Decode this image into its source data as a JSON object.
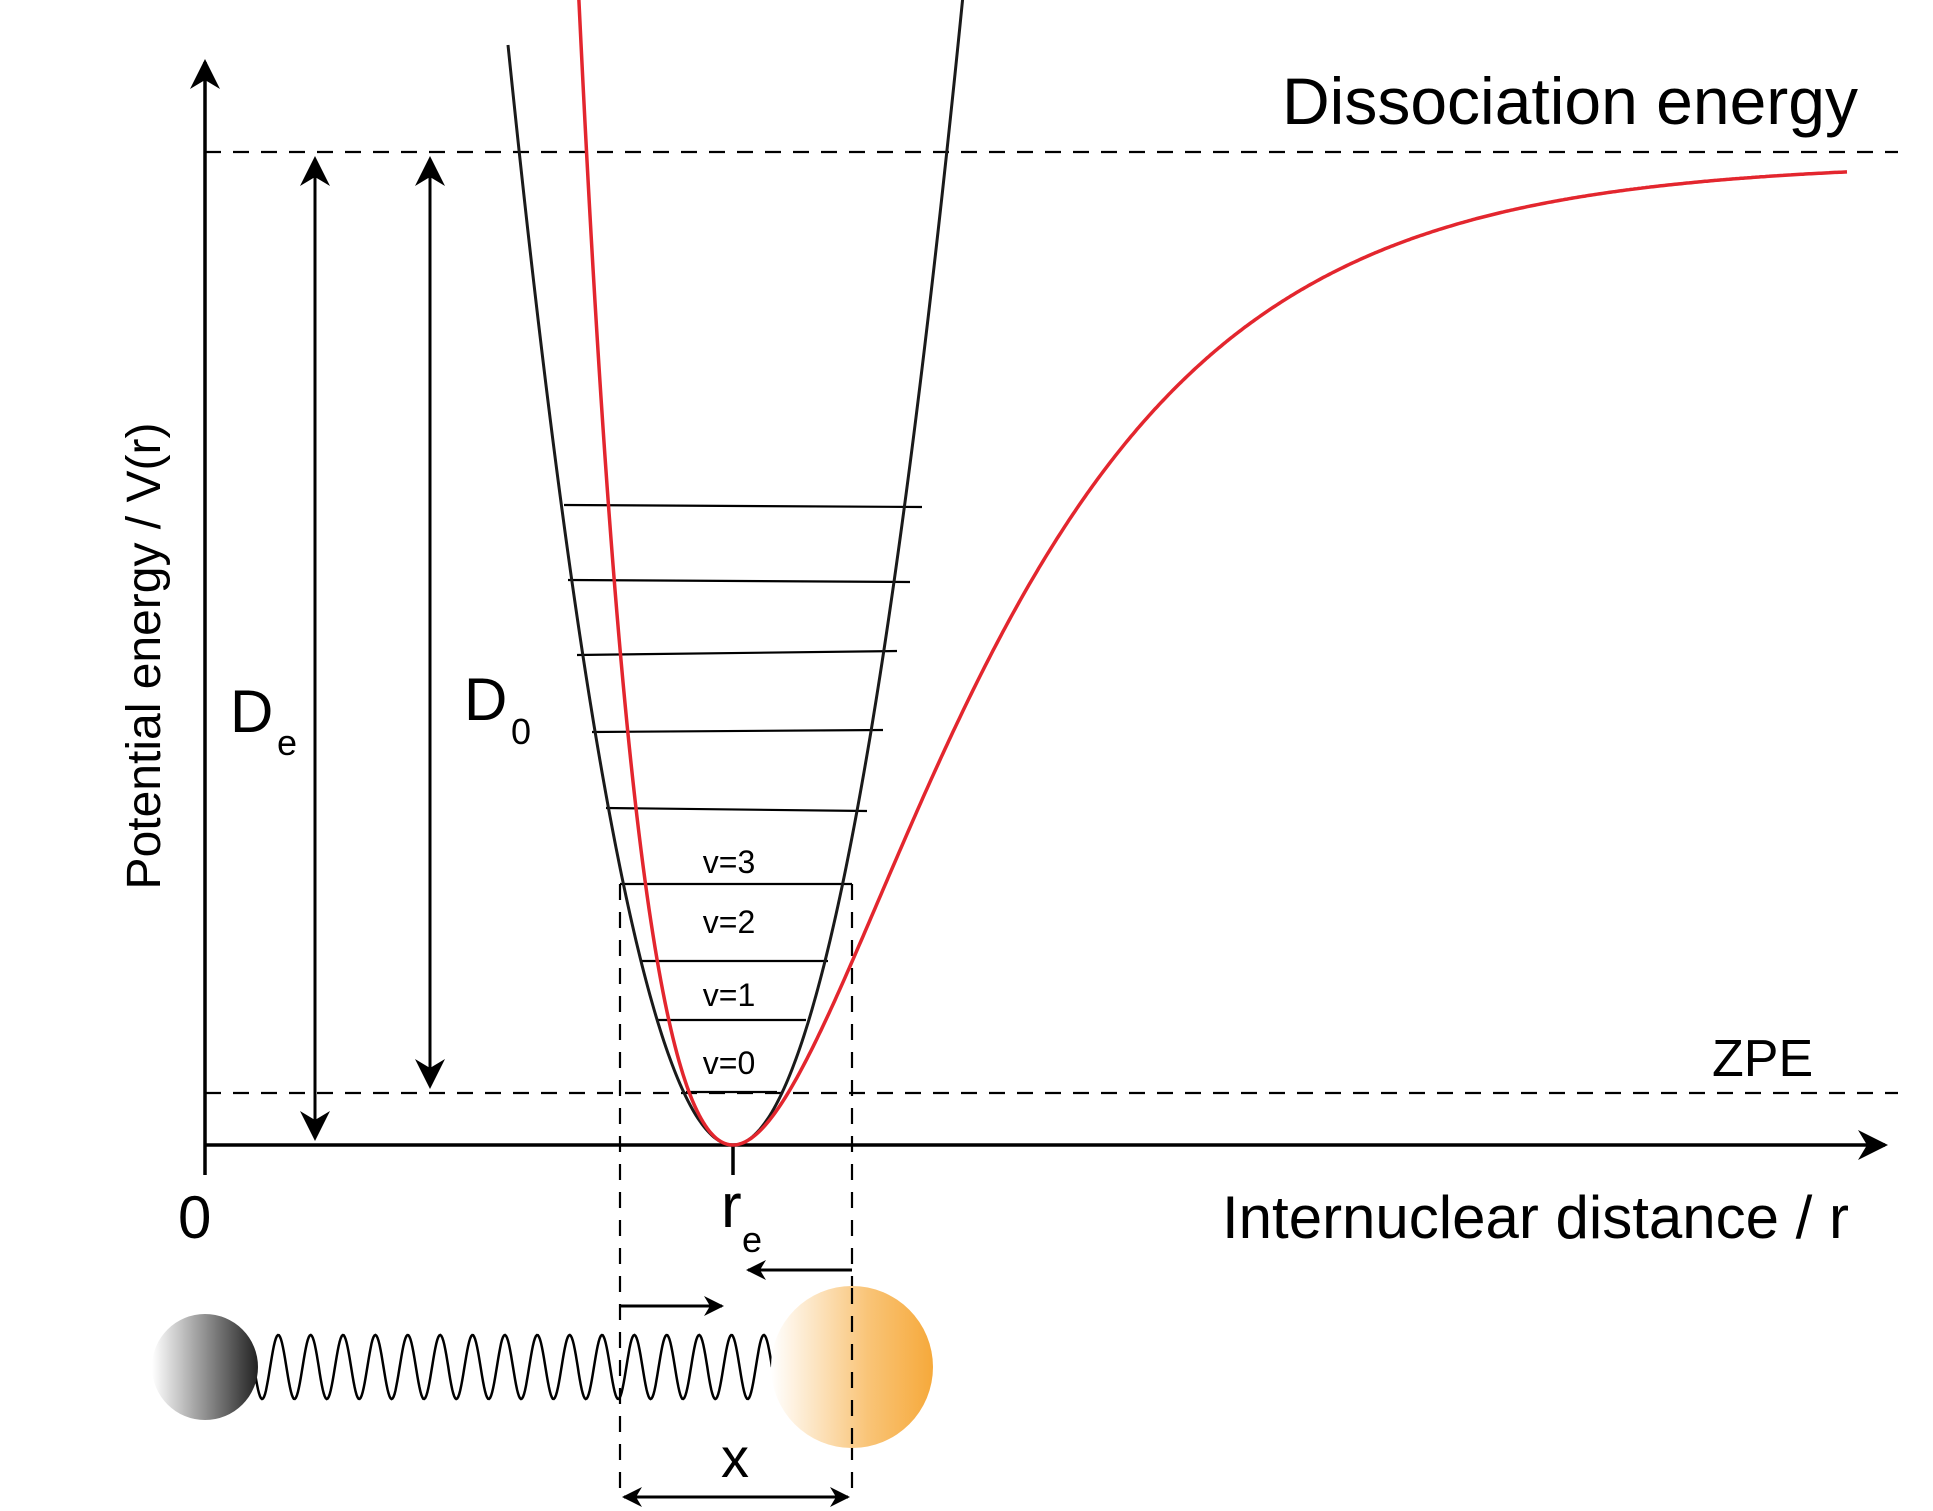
{
  "labels": {
    "y_axis": "Potential energy / V(r)",
    "x_axis": "Internuclear distance / r",
    "origin": "0",
    "dissociation": "Dissociation energy",
    "zpe": "ZPE",
    "De_main": "D",
    "De_sub": "e",
    "D0_main": "D",
    "D0_sub": "0",
    "re_main": "r",
    "re_sub": "e",
    "displacement": "x"
  },
  "vibrational_levels": [
    "v=0",
    "v=1",
    "v=2",
    "v=3"
  ],
  "colors": {
    "morse_curve": "#e3262e",
    "harmonic_curve": "#1a1a1a",
    "axes": "#000000",
    "atom_left": "#333333",
    "atom_right": "#f6a93b"
  },
  "icons": {
    "atom_left": "dark-sphere",
    "atom_right": "orange-sphere",
    "spring": "coil-spring"
  }
}
